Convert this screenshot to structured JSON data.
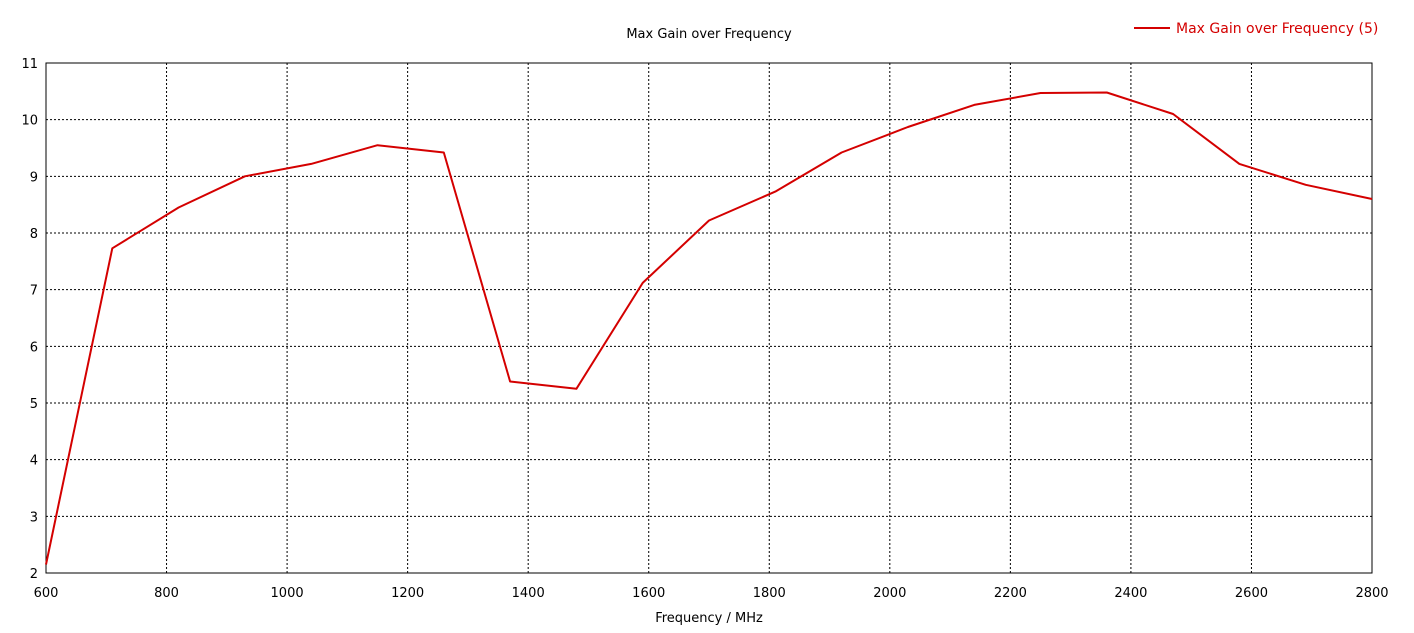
{
  "chart_data": {
    "type": "line",
    "title": "Max Gain over Frequency",
    "xlabel": "Frequency / MHz",
    "ylabel": "",
    "xlim": [
      600,
      2800
    ],
    "ylim": [
      2,
      11
    ],
    "x_ticks": [
      "600",
      "800",
      "1000",
      "1200",
      "1400",
      "1600",
      "1800",
      "2000",
      "2200",
      "2400",
      "2600",
      "2800"
    ],
    "y_ticks": [
      "2",
      "3",
      "4",
      "5",
      "6",
      "7",
      "8",
      "9",
      "10",
      "11"
    ],
    "grid": true,
    "legend_position": "top-right",
    "series": [
      {
        "name": "Max Gain over Frequency (5)",
        "color": "#d40000",
        "x": [
          600,
          710,
          820,
          930,
          1040,
          1150,
          1260,
          1370,
          1480,
          1590,
          1700,
          1810,
          1920,
          2030,
          2140,
          2250,
          2360,
          2470,
          2580,
          2690,
          2800
        ],
        "y": [
          2.15,
          7.73,
          8.45,
          9.0,
          9.22,
          9.55,
          9.42,
          5.38,
          5.25,
          7.12,
          8.22,
          8.73,
          9.42,
          9.87,
          10.26,
          10.47,
          10.48,
          10.1,
          9.22,
          8.85,
          8.6
        ]
      }
    ]
  }
}
